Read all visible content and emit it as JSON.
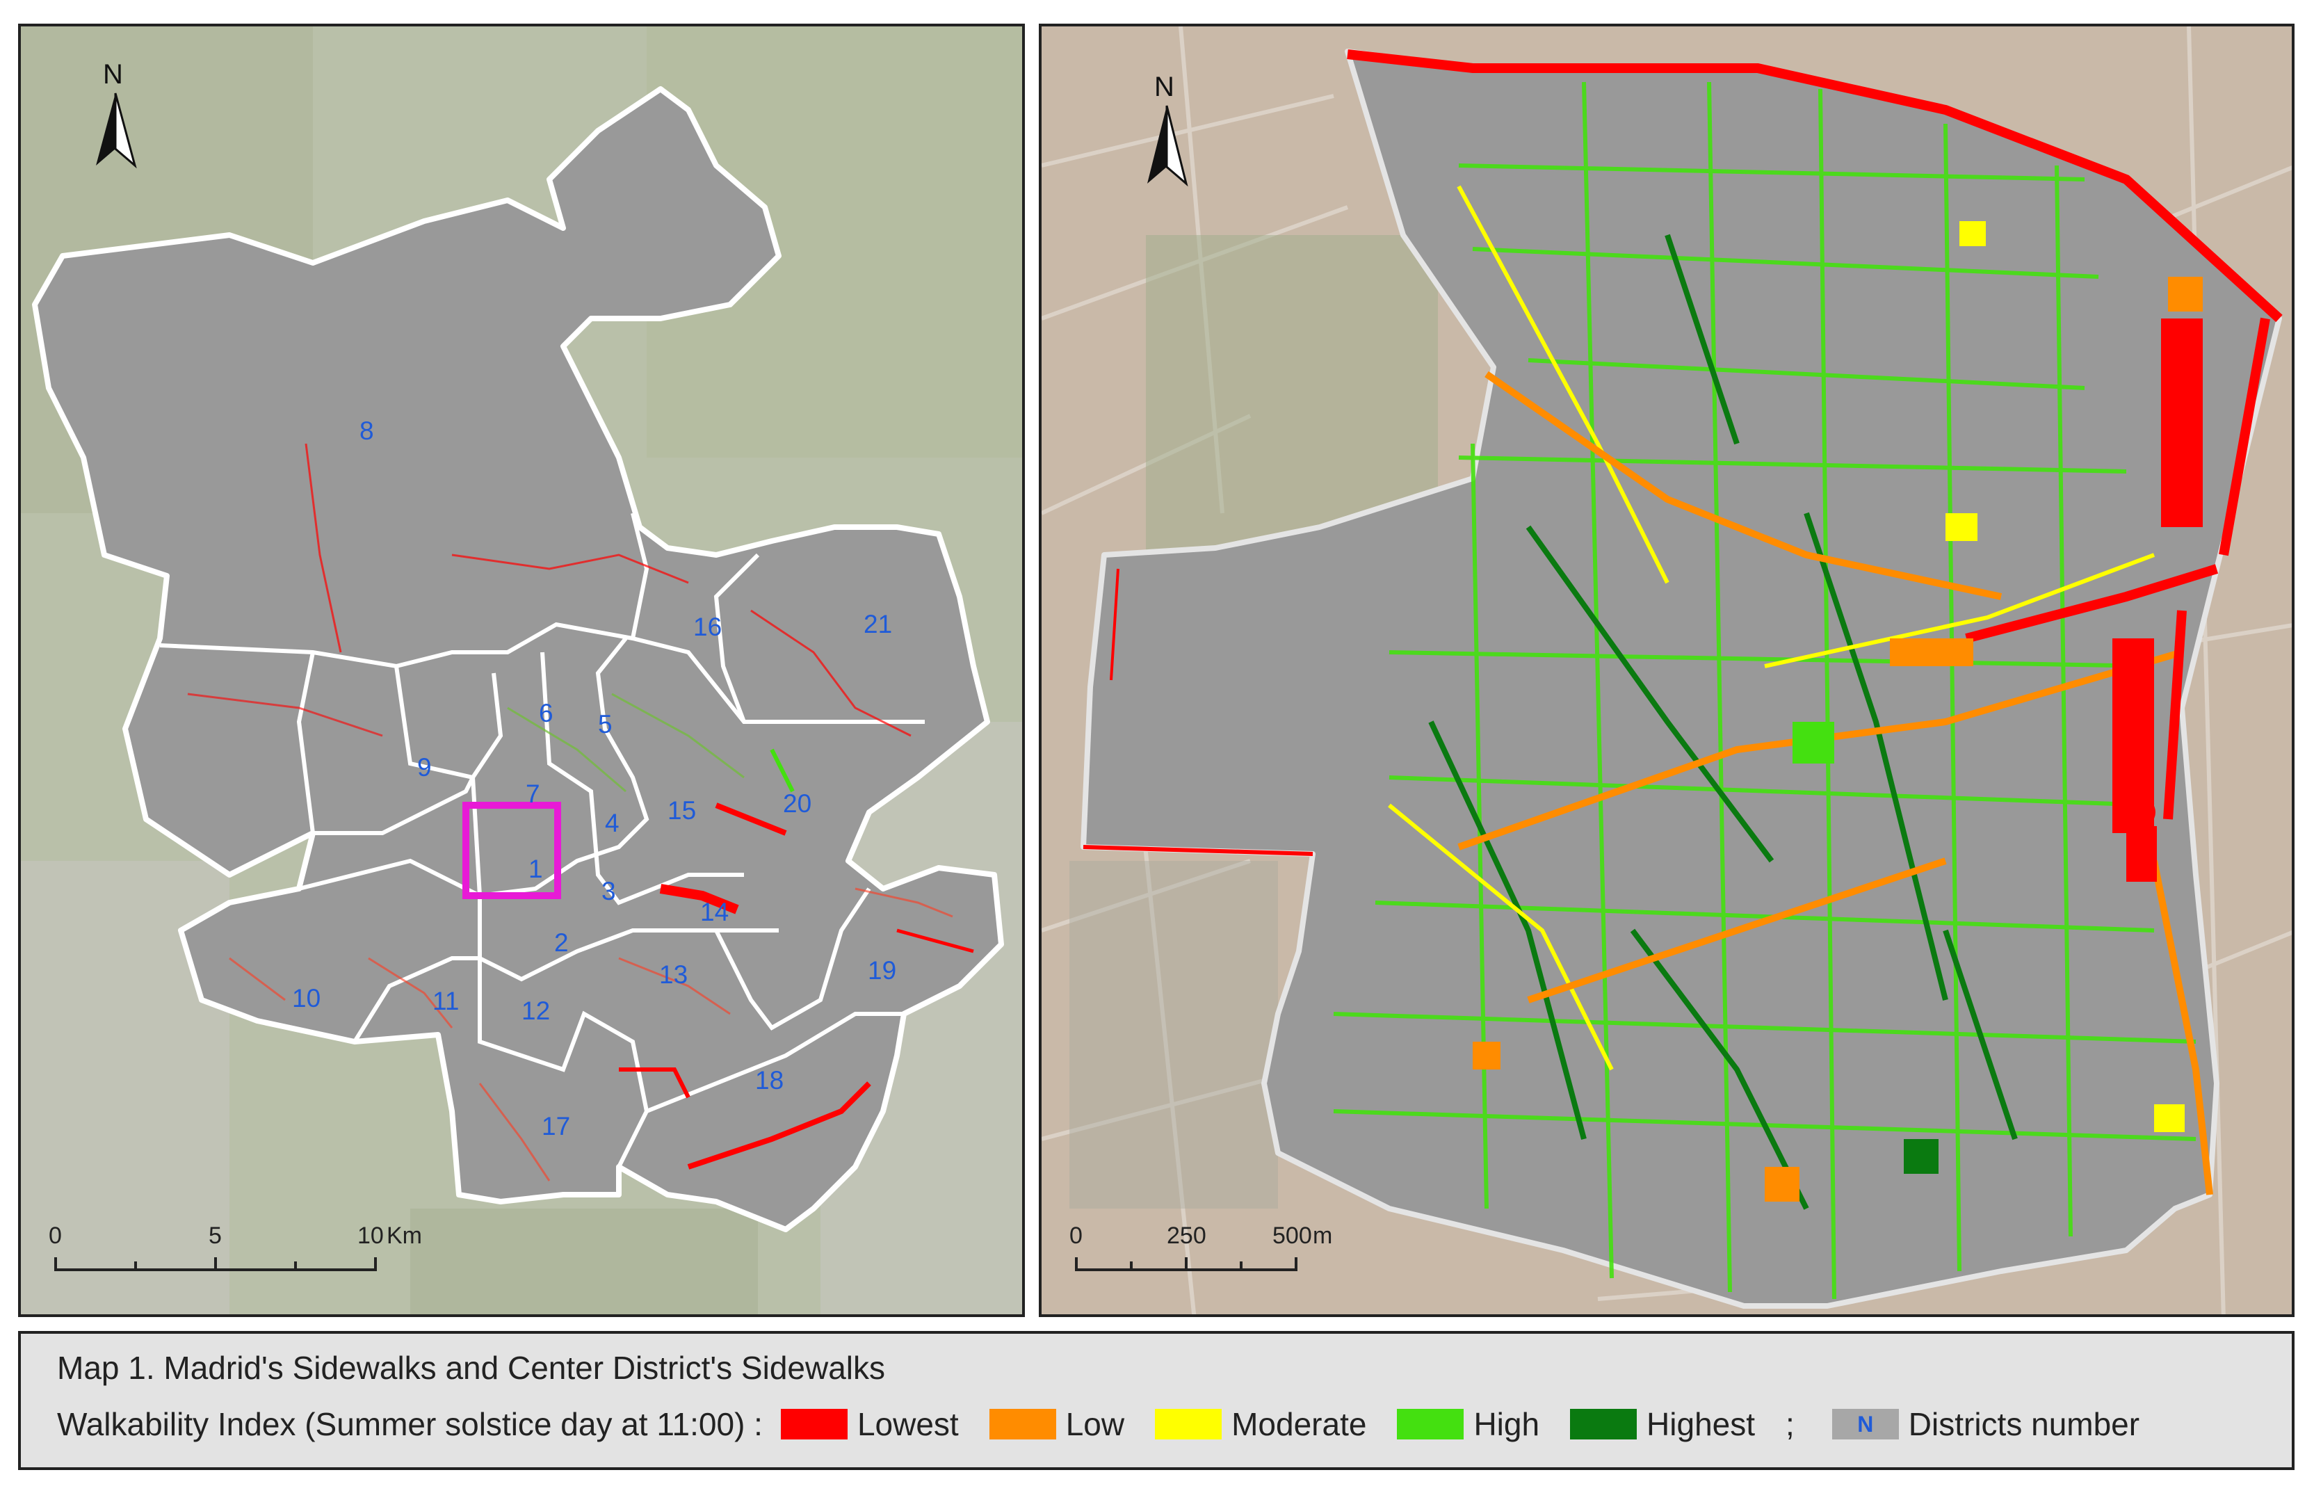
{
  "left_map": {
    "north_label": "N",
    "districts": [
      {
        "number": "1"
      },
      {
        "number": "2"
      },
      {
        "number": "3"
      },
      {
        "number": "4"
      },
      {
        "number": "5"
      },
      {
        "number": "6"
      },
      {
        "number": "7"
      },
      {
        "number": "8"
      },
      {
        "number": "9"
      },
      {
        "number": "10"
      },
      {
        "number": "11"
      },
      {
        "number": "12"
      },
      {
        "number": "13"
      },
      {
        "number": "14"
      },
      {
        "number": "15"
      },
      {
        "number": "16"
      },
      {
        "number": "17"
      },
      {
        "number": "18"
      },
      {
        "number": "19"
      },
      {
        "number": "20"
      },
      {
        "number": "21"
      }
    ],
    "scale_bar": {
      "labels": [
        "0",
        "5",
        "10"
      ],
      "unit": "Km"
    },
    "highlight_color": "#e81ad6"
  },
  "right_map": {
    "north_label": "N",
    "scale_bar": {
      "labels": [
        "0",
        "250",
        "500"
      ],
      "unit": "m"
    }
  },
  "legend": {
    "title": "Map 1. Madrid's Sidewalks and Center District's Sidewalks",
    "index_label": "Walkability Index (Summer solstice day at 11:00) :",
    "classes": [
      {
        "label": "Lowest",
        "color": "#ff0000"
      },
      {
        "label": "Low",
        "color": "#ff8c00"
      },
      {
        "label": "Moderate",
        "color": "#ffff00"
      },
      {
        "label": "High",
        "color": "#44e010"
      },
      {
        "label": "Highest",
        "color": "#0a7a10"
      }
    ],
    "separator": ";",
    "district_symbol": {
      "glyph": "N",
      "label": "Districts number",
      "color": "#a7a7a7"
    }
  }
}
